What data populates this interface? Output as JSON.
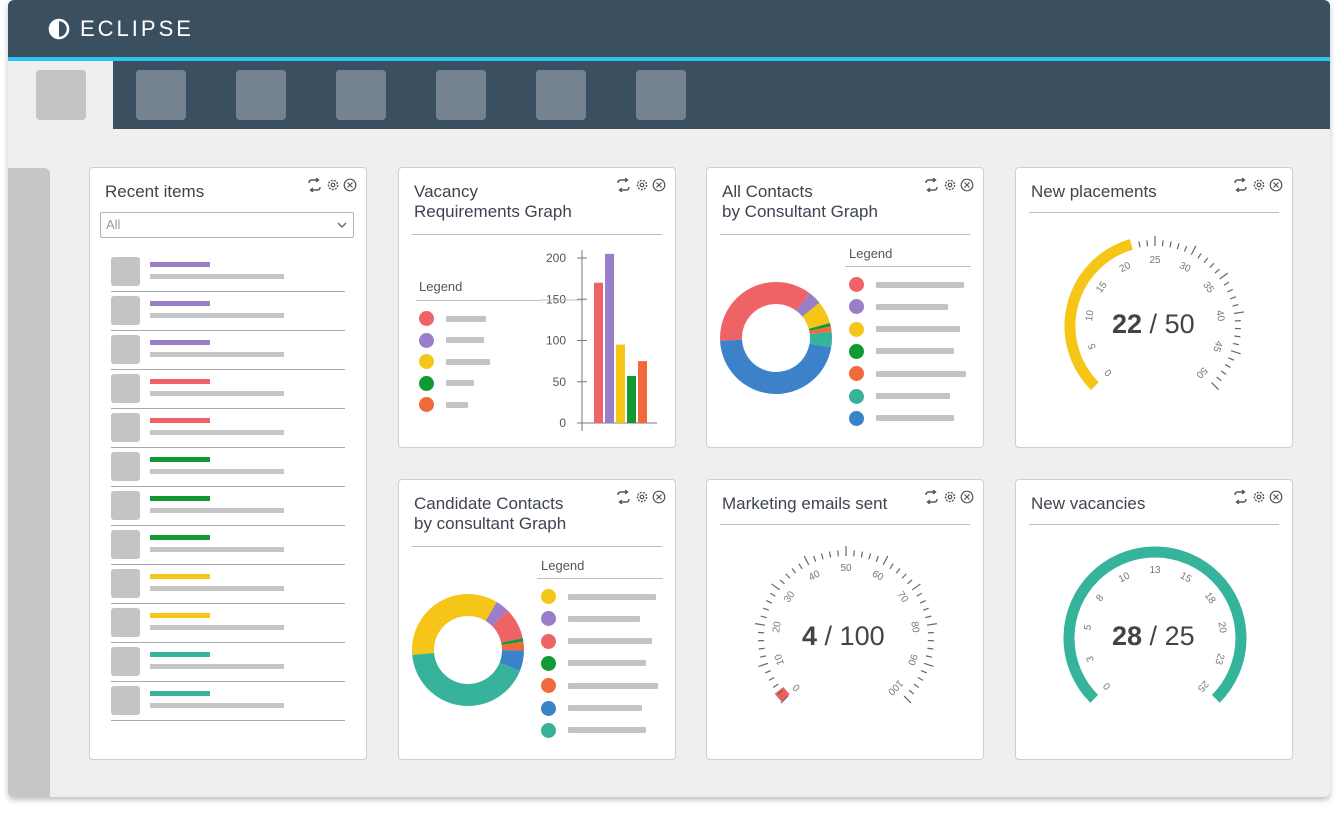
{
  "app": {
    "brand_name": "ECLIPSE",
    "brand_icon": "half-circle-logo-icon"
  },
  "tabs": [
    {
      "name": "tab-1",
      "active": true
    },
    {
      "name": "tab-2",
      "active": false
    },
    {
      "name": "tab-3",
      "active": false
    },
    {
      "name": "tab-4",
      "active": false
    },
    {
      "name": "tab-5",
      "active": false
    },
    {
      "name": "tab-6",
      "active": false
    },
    {
      "name": "tab-7",
      "active": false
    }
  ],
  "colors": {
    "red": "#ee6466",
    "purple": "#9b7ec8",
    "yellow": "#f5c518",
    "green": "#119933",
    "orange": "#f06a3c",
    "teal": "#38b39b",
    "blue": "#3b82c8",
    "gauge_yellow": "#f5c518",
    "gauge_teal": "#36b39b",
    "gauge_red": "#ee5f61"
  },
  "widgets": {
    "recent_items": {
      "title": "Recent items",
      "filter_value": "All",
      "rows": [
        "#9b7ec8",
        "#9b7ec8",
        "#9b7ec8",
        "#ee6466",
        "#ee6466",
        "#119933",
        "#119933",
        "#119933",
        "#f5c518",
        "#f5c518",
        "#38b39b",
        "#38b39b"
      ]
    },
    "vacancy": {
      "title": "Vacancy\nRequirements Graph",
      "legend_title": "Legend"
    },
    "all_contacts": {
      "title": "All Contacts\nby Consultant Graph",
      "legend_title": "Legend"
    },
    "new_placements": {
      "title": "New placements",
      "value": "22",
      "max": "50"
    },
    "candidate_contacts": {
      "title": "Candidate Contacts\nby consultant Graph",
      "legend_title": "Legend"
    },
    "marketing_emails": {
      "title": "Marketing emails sent",
      "value": "4",
      "max": "100"
    },
    "new_vacancies": {
      "title": "New vacancies",
      "value": "28",
      "max": "25"
    }
  },
  "chart_data": [
    {
      "type": "bar",
      "chart": "vacancy",
      "values": [
        170,
        205,
        95,
        57,
        75
      ],
      "colors": [
        "#ee6466",
        "#9b7ec8",
        "#f5c518",
        "#119933",
        "#f06a3c"
      ],
      "ylim": [
        0,
        200
      ],
      "yticks": [
        0,
        50,
        100,
        150,
        200
      ]
    },
    {
      "type": "pie",
      "chart": "all_contacts",
      "values": [
        36,
        4,
        6.5,
        1,
        1.5,
        4.5,
        46.5
      ],
      "colors": [
        "#ee6466",
        "#9b7ec8",
        "#f5c518",
        "#119933",
        "#f06a3c",
        "#38b39b",
        "#3b82c8"
      ]
    },
    {
      "type": "pie",
      "chart": "candidate_contacts",
      "values": [
        35,
        4,
        9,
        1,
        2.5,
        6,
        42.5
      ],
      "colors": [
        "#f5c518",
        "#9b7ec8",
        "#ee6466",
        "#119933",
        "#f06a3c",
        "#3b82c8",
        "#38b39b"
      ]
    },
    {
      "type": "gauge",
      "chart": "new_placements",
      "value": 22,
      "min": 0,
      "max": 50,
      "tick_labels": [
        "0",
        "5",
        "10",
        "15",
        "20",
        "25",
        "30",
        "35",
        "40",
        "45",
        "50"
      ]
    },
    {
      "type": "gauge",
      "chart": "marketing_emails",
      "value": 4,
      "min": 0,
      "max": 100,
      "tick_labels": [
        "0",
        "10",
        "20",
        "30",
        "40",
        "50",
        "60",
        "70",
        "80",
        "90",
        "100"
      ]
    },
    {
      "type": "gauge",
      "chart": "new_vacancies",
      "value": 28,
      "min": 0,
      "max": 25,
      "tick_labels": [
        "0",
        "3",
        "5",
        "8",
        "10",
        "13",
        "15",
        "18",
        "20",
        "23",
        "25"
      ]
    }
  ]
}
